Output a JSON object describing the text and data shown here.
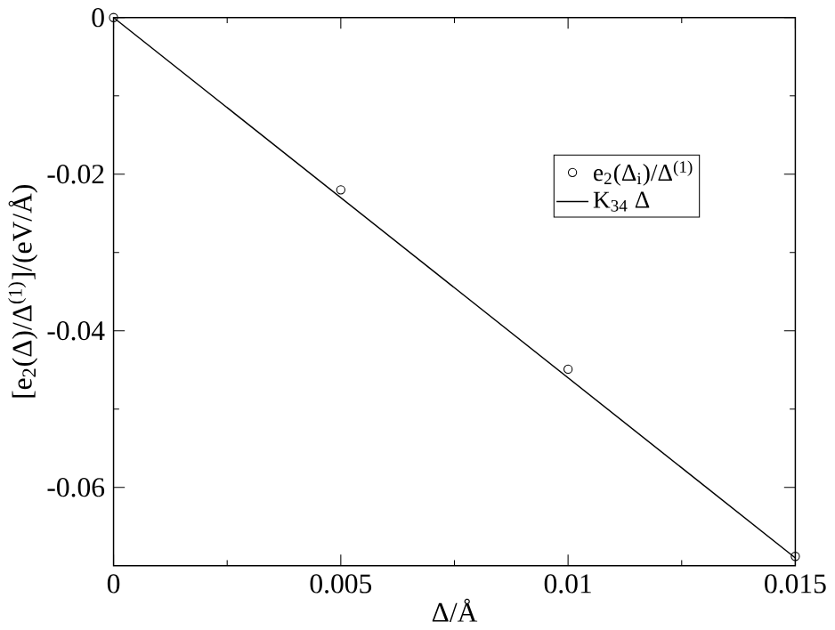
{
  "chart_data": {
    "type": "scatter",
    "xlabel": "Δ/Å",
    "ylabel": "[e$_{2}$(Δ)/Δ$^{(1)}$]/(eV/Å)",
    "series": [
      {
        "name": "e$_{2}$(Δ$_{i}$)/Δ$^{(1)}$",
        "marker": "circle",
        "color": "#000000",
        "x": [
          0,
          0.005,
          0.01,
          0.015
        ],
        "values": [
          0,
          -0.022,
          -0.0449,
          -0.0688
        ]
      },
      {
        "name": "K$_{34}$ Δ",
        "type": "line",
        "marker": "none",
        "line_style": "solid",
        "color": "#000000",
        "x": [
          0,
          0.015
        ],
        "values": [
          0,
          -0.069
        ]
      }
    ],
    "xlim": [
      0,
      0.015
    ],
    "ylim": [
      -0.07,
      0
    ],
    "xticks": [
      0,
      0.005,
      0.01,
      0.015
    ],
    "yticks": [
      {
        "value": 0,
        "label": "0"
      },
      {
        "value": -0.02,
        "label": "-0.02"
      },
      {
        "value": -0.04,
        "label": "-0.04"
      },
      {
        "value": -0.06,
        "label": "-0.06"
      }
    ],
    "legend": "right",
    "grid": false
  }
}
